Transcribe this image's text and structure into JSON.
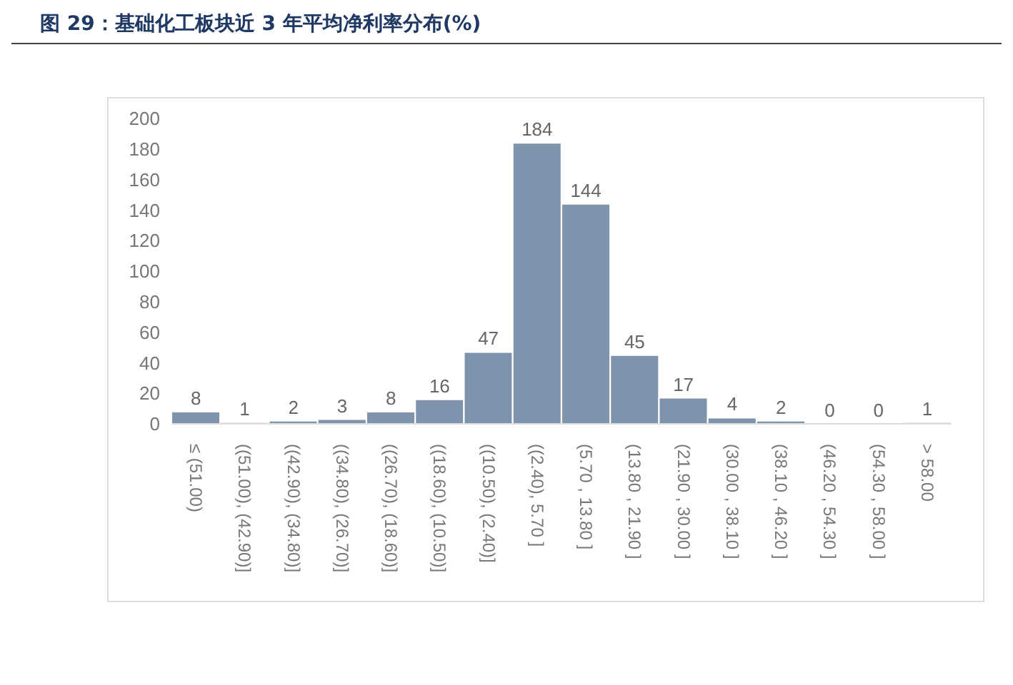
{
  "chart_data": {
    "type": "bar",
    "title": "图 29：基础化工板块近 3 年平均净利率分布(%)",
    "categories": [
      "≤ (51.00)",
      "((51.00), (42.90)]",
      "((42.90), (34.80)]",
      "((34.80), (26.70)]",
      "((26.70), (18.60)]",
      "((18.60), (10.50)]",
      "((10.50), (2.40)]",
      "((2.40), 5.70 ]",
      "(5.70 , 13.80 ]",
      "(13.80 , 21.90 ]",
      "(21.90 , 30.00 ]",
      "(30.00 , 38.10 ]",
      "(38.10 , 46.20 ]",
      "(46.20 , 54.30 ]",
      "(54.30 , 58.00 ]",
      "> 58.00"
    ],
    "values": [
      8,
      1,
      2,
      3,
      8,
      16,
      47,
      184,
      144,
      45,
      17,
      4,
      2,
      0,
      0,
      1
    ],
    "color": "#7f93ad",
    "ylim": [
      0,
      200
    ],
    "yticks": [
      0,
      20,
      40,
      60,
      80,
      100,
      120,
      140,
      160,
      180,
      200
    ],
    "grid": false,
    "data_labels": true
  }
}
